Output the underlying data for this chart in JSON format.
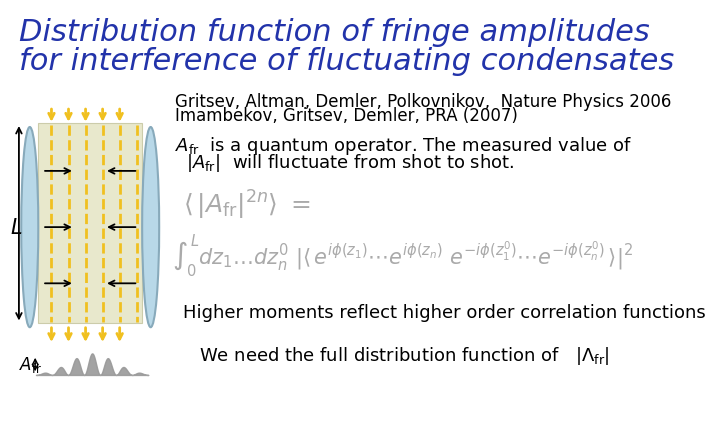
{
  "title_line1": "Distribution function of fringe amplitudes",
  "title_line2": "for interference of fluctuating condensates",
  "title_color": "#2233aa",
  "title_fontsize": 22,
  "bg_color": "#ffffff",
  "ref_line1": "Gritsev, Altman, Demler, Polkovnikov,  Nature Physics 2006",
  "ref_line2": "Imambekov, Gritsev, Demler, PRA (2007)",
  "ref_fontsize": 12,
  "body_fontsize": 13,
  "eq_fontsize": 15,
  "lens_color": "#b8d8e8",
  "lens_edge": "#88aabb",
  "box_color": "#e8e8cc",
  "box_edge": "#ccccaa",
  "fringe_color": "#f0c020",
  "arrow_color": "#000000",
  "waveform_color": "#999999",
  "text5_plain": "Higher moments reflect higher order correlation functions",
  "text5_fontsize": 13,
  "text6_plain": "We need the full distribution function of",
  "text6_fontsize": 13
}
